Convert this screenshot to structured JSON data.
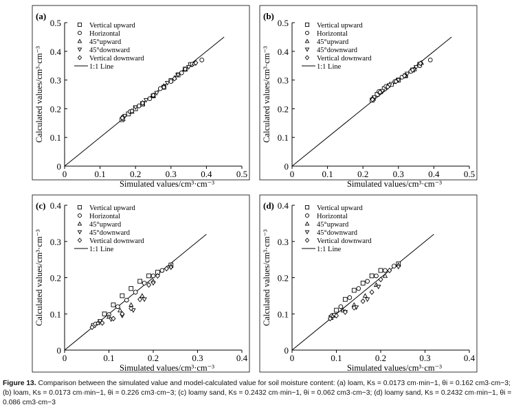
{
  "figure": {
    "marker_names": [
      "Vertical upward",
      "Horizontal",
      "45°upward",
      "45°downward",
      "Vertical downward"
    ],
    "line_label": "1:1 Line",
    "caption": {
      "label": "Figure 13.",
      "text": "Comparison between the simulated value and model-calculated value for soil moisture content: (a) loam, Ks = 0.0173 cm·min−1, θi = 0.162 cm3·cm−3; (b) loam, Ks = 0.0173 cm·min−1, θi = 0.226 cm3·cm−3; (c) loamy sand, Ks = 0.2432 cm·min−1, θi = 0.062 cm3·cm−3; (d) loamy sand, Ks = 0.2432 cm·min−1, θi = 0.086 cm3·cm−3"
    }
  },
  "chart_data": [
    {
      "type": "scatter",
      "panel": "(a)",
      "xlabel": "Simulated values/cm³·cm⁻³",
      "ylabel": "Calculated values/cm³·cm⁻³",
      "xlim": [
        0,
        0.5
      ],
      "ylim": [
        0,
        0.5
      ],
      "xticks": [
        "0",
        "0.1",
        "0.2",
        "0.3",
        "0.4",
        "0.5"
      ],
      "yticks": [
        "0",
        "0.1",
        "0.2",
        "0.3",
        "0.4",
        "0.5"
      ],
      "reference_line": {
        "name": "1:1 Line",
        "x": [
          0,
          0.45
        ],
        "y": [
          0,
          0.45
        ]
      },
      "series": [
        {
          "name": "Vertical upward",
          "x": [
            0.162,
            0.18,
            0.2,
            0.22,
            0.25,
            0.28,
            0.3,
            0.32,
            0.34,
            0.355
          ],
          "y": [
            0.162,
            0.182,
            0.2,
            0.218,
            0.245,
            0.275,
            0.298,
            0.318,
            0.338,
            0.354
          ]
        },
        {
          "name": "Horizontal",
          "x": [
            0.164,
            0.185,
            0.21,
            0.24,
            0.27,
            0.3,
            0.33,
            0.36,
            0.387
          ],
          "y": [
            0.17,
            0.19,
            0.21,
            0.235,
            0.27,
            0.295,
            0.325,
            0.355,
            0.37
          ]
        },
        {
          "name": "45°upward",
          "x": [
            0.165,
            0.19,
            0.22,
            0.25,
            0.28,
            0.31,
            0.34,
            0.365
          ],
          "y": [
            0.165,
            0.19,
            0.215,
            0.245,
            0.28,
            0.308,
            0.337,
            0.358
          ]
        },
        {
          "name": "45°downward",
          "x": [
            0.17,
            0.2,
            0.23,
            0.26,
            0.29,
            0.32,
            0.35
          ],
          "y": [
            0.175,
            0.205,
            0.23,
            0.255,
            0.29,
            0.318,
            0.345
          ]
        },
        {
          "name": "Vertical downward",
          "x": [
            0.163,
            0.19,
            0.22,
            0.25,
            0.28,
            0.31,
            0.34,
            0.37
          ],
          "y": [
            0.168,
            0.192,
            0.22,
            0.247,
            0.275,
            0.305,
            0.338,
            0.36
          ]
        }
      ]
    },
    {
      "type": "scatter",
      "panel": "(b)",
      "xlabel": "Simulated values/cm³·cm⁻³",
      "ylabel": "Calculated values/cm³·cm⁻³",
      "xlim": [
        0,
        0.5
      ],
      "ylim": [
        0,
        0.5
      ],
      "xticks": [
        "0",
        "0.1",
        "0.2",
        "0.3",
        "0.4",
        "0.5"
      ],
      "yticks": [
        "0",
        "0.1",
        "0.2",
        "0.3",
        "0.4",
        "0.5"
      ],
      "reference_line": {
        "name": "1:1 Line",
        "x": [
          0,
          0.45
        ],
        "y": [
          0,
          0.45
        ]
      },
      "series": [
        {
          "name": "Vertical upward",
          "x": [
            0.226,
            0.24,
            0.26,
            0.28,
            0.3,
            0.32,
            0.34,
            0.36
          ],
          "y": [
            0.23,
            0.25,
            0.27,
            0.285,
            0.3,
            0.315,
            0.335,
            0.355
          ]
        },
        {
          "name": "Horizontal",
          "x": [
            0.228,
            0.245,
            0.265,
            0.29,
            0.31,
            0.335,
            0.36,
            0.39
          ],
          "y": [
            0.235,
            0.26,
            0.278,
            0.295,
            0.31,
            0.33,
            0.35,
            0.37
          ]
        },
        {
          "name": "45°upward",
          "x": [
            0.23,
            0.25,
            0.27,
            0.295,
            0.32,
            0.345,
            0.365
          ],
          "y": [
            0.235,
            0.258,
            0.28,
            0.298,
            0.315,
            0.338,
            0.36
          ]
        },
        {
          "name": "45°downward",
          "x": [
            0.232,
            0.255,
            0.275,
            0.3,
            0.325,
            0.35
          ],
          "y": [
            0.24,
            0.262,
            0.282,
            0.3,
            0.322,
            0.345
          ]
        },
        {
          "name": "Vertical downward",
          "x": [
            0.227,
            0.248,
            0.27,
            0.293,
            0.317,
            0.34,
            0.362
          ],
          "y": [
            0.232,
            0.258,
            0.276,
            0.295,
            0.315,
            0.335,
            0.358
          ]
        }
      ]
    },
    {
      "type": "scatter",
      "panel": "(c)",
      "xlabel": "Simulated values/cm³·cm⁻³",
      "ylabel": "Calculated values/cm³·cm⁻³",
      "xlim": [
        0,
        0.4
      ],
      "ylim": [
        0,
        0.4
      ],
      "xticks": [
        "0",
        "0.1",
        "0.2",
        "0.3",
        "0.4"
      ],
      "yticks": [
        "0",
        "0.1",
        "0.2",
        "0.3",
        "0.4"
      ],
      "reference_line": {
        "name": "1:1 Line",
        "x": [
          0,
          0.32
        ],
        "y": [
          0,
          0.32
        ]
      },
      "series": [
        {
          "name": "Vertical upward",
          "x": [
            0.065,
            0.09,
            0.11,
            0.13,
            0.15,
            0.17,
            0.19,
            0.21,
            0.24
          ],
          "y": [
            0.068,
            0.1,
            0.125,
            0.15,
            0.17,
            0.19,
            0.205,
            0.215,
            0.235
          ]
        },
        {
          "name": "Horizontal",
          "x": [
            0.07,
            0.1,
            0.12,
            0.14,
            0.16,
            0.18,
            0.2,
            0.22
          ],
          "y": [
            0.072,
            0.098,
            0.12,
            0.138,
            0.16,
            0.185,
            0.205,
            0.22
          ]
        },
        {
          "name": "45°upward",
          "x": [
            0.075,
            0.1,
            0.125,
            0.15,
            0.175,
            0.2,
            0.24
          ],
          "y": [
            0.075,
            0.092,
            0.11,
            0.125,
            0.15,
            0.19,
            0.232
          ]
        },
        {
          "name": "45°downward",
          "x": [
            0.08,
            0.105,
            0.13,
            0.155,
            0.18,
            0.2,
            0.24
          ],
          "y": [
            0.08,
            0.085,
            0.095,
            0.11,
            0.14,
            0.185,
            0.228
          ]
        },
        {
          "name": "Vertical downward",
          "x": [
            0.062,
            0.085,
            0.11,
            0.13,
            0.15,
            0.17,
            0.19,
            0.21,
            0.23
          ],
          "y": [
            0.063,
            0.075,
            0.087,
            0.1,
            0.115,
            0.14,
            0.18,
            0.205,
            0.225
          ]
        }
      ]
    },
    {
      "type": "scatter",
      "panel": "(d)",
      "xlabel": "Simulated values/cm³·cm⁻³",
      "ylabel": "Calculated values/cm³·cm⁻³",
      "xlim": [
        0,
        0.4
      ],
      "ylim": [
        0,
        0.4
      ],
      "xticks": [
        "0",
        "0.1",
        "0.2",
        "0.3",
        "0.4"
      ],
      "yticks": [
        "0",
        "0.1",
        "0.2",
        "0.3",
        "0.4"
      ],
      "reference_line": {
        "name": "1:1 Line",
        "x": [
          0,
          0.32
        ],
        "y": [
          0,
          0.32
        ]
      },
      "series": [
        {
          "name": "Vertical upward",
          "x": [
            0.088,
            0.1,
            0.12,
            0.14,
            0.16,
            0.18,
            0.2,
            0.24
          ],
          "y": [
            0.09,
            0.11,
            0.14,
            0.165,
            0.185,
            0.205,
            0.22,
            0.238
          ]
        },
        {
          "name": "Horizontal",
          "x": [
            0.09,
            0.11,
            0.13,
            0.15,
            0.17,
            0.19,
            0.21,
            0.23
          ],
          "y": [
            0.095,
            0.12,
            0.145,
            0.17,
            0.19,
            0.205,
            0.22,
            0.232
          ]
        },
        {
          "name": "45°upward",
          "x": [
            0.092,
            0.115,
            0.14,
            0.165,
            0.19,
            0.21,
            0.24
          ],
          "y": [
            0.095,
            0.11,
            0.125,
            0.15,
            0.18,
            0.205,
            0.235
          ]
        },
        {
          "name": "45°downward",
          "x": [
            0.095,
            0.12,
            0.145,
            0.17,
            0.195,
            0.24
          ],
          "y": [
            0.097,
            0.105,
            0.118,
            0.14,
            0.175,
            0.23
          ]
        },
        {
          "name": "Vertical downward",
          "x": [
            0.086,
            0.1,
            0.12,
            0.14,
            0.16,
            0.18,
            0.2,
            0.22
          ],
          "y": [
            0.087,
            0.095,
            0.105,
            0.117,
            0.135,
            0.16,
            0.195,
            0.22
          ]
        }
      ]
    }
  ]
}
